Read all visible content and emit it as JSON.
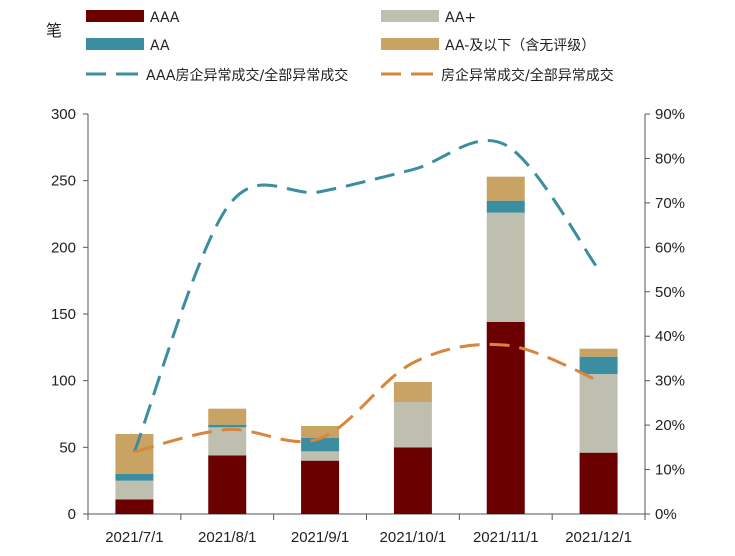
{
  "chart_data": {
    "type": "bar",
    "stacked": true,
    "unit_label": "笔",
    "categories": [
      "2021/7/1",
      "2021/8/1",
      "2021/9/1",
      "2021/10/1",
      "2021/11/1",
      "2021/12/1"
    ],
    "series": [
      {
        "name": "AAA",
        "color": "#6B0000",
        "values": [
          11,
          44,
          40,
          50,
          144,
          46
        ]
      },
      {
        "name": "AA+",
        "color": "#BFBFB0",
        "values": [
          14,
          21,
          7,
          34,
          82,
          59
        ]
      },
      {
        "name": "AA",
        "color": "#3B8DA0",
        "values": [
          5,
          2,
          10,
          0,
          9,
          13
        ]
      },
      {
        "name": "AA-及以下（含无评级）",
        "color": "#C9A364",
        "values": [
          30,
          12,
          9,
          15,
          18,
          6
        ]
      }
    ],
    "line_series": [
      {
        "name": "AAA房企异常成交/全部异常成交",
        "color": "#3B8DA0",
        "axis": "right",
        "values": [
          0.14,
          0.69,
          0.725,
          0.775,
          0.83,
          0.55
        ]
      },
      {
        "name": "房企异常成交/全部异常成交",
        "color": "#D8853D",
        "axis": "right",
        "values": [
          0.14,
          0.19,
          0.17,
          0.34,
          0.38,
          0.3
        ]
      }
    ],
    "y_left": {
      "min": 0,
      "max": 300,
      "ticks": [
        "0",
        "50",
        "100",
        "150",
        "200",
        "250",
        "300"
      ]
    },
    "y_right": {
      "min": 0,
      "max": 0.9,
      "ticks": [
        "0%",
        "10%",
        "20%",
        "30%",
        "40%",
        "50%",
        "60%",
        "70%",
        "80%",
        "90%"
      ]
    },
    "legend": [
      {
        "label": "AAA",
        "kind": "box",
        "color": "#6B0000"
      },
      {
        "label": "AA+",
        "kind": "box",
        "color": "#BFBFB0"
      },
      {
        "label": "AA",
        "kind": "box",
        "color": "#3B8DA0"
      },
      {
        "label": "AA-及以下（含无评级）",
        "kind": "box",
        "color": "#C9A364"
      },
      {
        "label": "AAA房企异常成交/全部异常成交",
        "kind": "dash",
        "color": "#3B8DA0"
      },
      {
        "label": "房企异常成交/全部异常成交",
        "kind": "dash",
        "color": "#D8853D"
      }
    ]
  }
}
